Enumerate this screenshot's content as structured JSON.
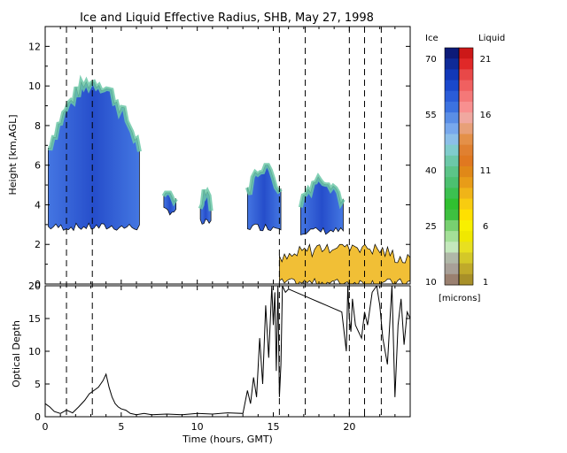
{
  "chart_data": [
    {
      "type": "heatmap",
      "title": "Ice and Liquid Effective Radius, SHB, May 27, 1998",
      "xlabel": "",
      "ylabel": "Height [km,AGL]",
      "xlim": [
        0,
        24
      ],
      "ylim": [
        0,
        13
      ],
      "y_ticks": [
        "0",
        "2",
        "4",
        "6",
        "8",
        "10",
        "12"
      ],
      "dashed_vertical_lines_hours": [
        1.4,
        3.1,
        15.4,
        17.1,
        20.0,
        21.0,
        22.1
      ],
      "colorbar": {
        "ice_label": "Ice",
        "liquid_label": "Liquid",
        "units": "[microns]",
        "ice_ticks": [
          "70",
          "55",
          "40",
          "25",
          "10"
        ],
        "liquid_ticks": [
          "21",
          "16",
          "11",
          "6",
          "1"
        ],
        "ice_colors": [
          "#0c1a78",
          "#0f2a98",
          "#1238b8",
          "#1a48cc",
          "#2a5cd8",
          "#3c72e0",
          "#5a8ee6",
          "#78a8ec",
          "#8cbfe8",
          "#80cccc",
          "#6cc8a8",
          "#5cc488",
          "#4cc070",
          "#3cc050",
          "#30c030",
          "#3ec040",
          "#78d070",
          "#a4e098",
          "#c4e8bc",
          "#b0b8a8",
          "#a8a098",
          "#9a8070"
        ],
        "liquid_colors": [
          "#cc1818",
          "#e02828",
          "#e84848",
          "#f06060",
          "#f47878",
          "#f89090",
          "#f0a8a0",
          "#e8a078",
          "#e49048",
          "#e08030",
          "#e07820",
          "#e08818",
          "#e89c18",
          "#f0b418",
          "#f8cc10",
          "#ffe000",
          "#f8f000",
          "#f0e800",
          "#e8e020",
          "#d4c828",
          "#c0aa2a",
          "#a89028"
        ]
      },
      "features": [
        {
          "name": "ice-cloud-morning",
          "t_start": 0.2,
          "t_end": 6.2,
          "base_km": 2.8,
          "top_km": 10.2,
          "phase": "ice"
        },
        {
          "name": "ice-cloud-patch-1",
          "t_start": 7.8,
          "t_end": 8.6,
          "base_km": 3.6,
          "top_km": 4.6,
          "phase": "ice"
        },
        {
          "name": "ice-cloud-patch-2",
          "t_start": 10.2,
          "t_end": 10.9,
          "base_km": 3.0,
          "top_km": 4.8,
          "phase": "ice"
        },
        {
          "name": "ice-cloud-afternoon",
          "t_start": 13.3,
          "t_end": 15.5,
          "base_km": 2.8,
          "top_km": 6.0,
          "phase": "ice"
        },
        {
          "name": "ice-cloud-evening",
          "t_start": 16.8,
          "t_end": 19.6,
          "base_km": 2.6,
          "top_km": 5.4,
          "phase": "ice"
        },
        {
          "name": "liquid-cloud-low",
          "t_start": 15.4,
          "t_end": 24,
          "base_km": 0,
          "top_km": 2.0,
          "phase": "liquid"
        }
      ]
    },
    {
      "type": "line",
      "title": "",
      "xlabel": "Time (hours, GMT)",
      "ylabel": "Optical Depth",
      "xlim": [
        0,
        24
      ],
      "ylim": [
        0,
        20
      ],
      "x_ticks": [
        "0",
        "5",
        "10",
        "15",
        "20"
      ],
      "y_ticks": [
        "0",
        "5",
        "10",
        "15",
        "20"
      ],
      "series": [
        {
          "x": [
            0,
            0.3,
            0.6,
            1.0,
            1.4,
            1.8,
            2.2,
            2.6,
            2.9,
            3.2,
            3.5,
            3.8,
            4.0,
            4.2,
            4.4,
            4.6,
            4.8,
            5.0,
            5.3,
            5.6,
            6.0,
            6.5,
            7.0,
            8.0,
            9.0,
            10.0,
            11.0,
            12.0,
            13.0,
            13.3,
            13.5,
            13.7,
            13.9,
            14.1,
            14.3,
            14.5,
            14.7,
            14.9,
            15.0,
            15.1,
            15.2,
            15.3,
            15.4,
            15.5,
            15.6,
            15.8,
            16.0,
            16.5,
            17.0,
            17.5,
            18.0,
            18.5,
            19.0,
            19.5,
            19.8,
            19.9,
            20.0,
            20.1,
            20.2,
            20.4,
            20.6,
            20.8,
            21.0,
            21.2,
            21.5,
            21.8,
            22.0,
            22.2,
            22.5,
            22.8,
            23.0,
            23.2,
            23.4,
            23.6,
            23.8,
            24.0
          ],
          "y": [
            2.0,
            1.5,
            0.8,
            0.5,
            1.0,
            0.6,
            1.5,
            2.5,
            3.5,
            4.0,
            4.5,
            5.5,
            6.5,
            4.5,
            3.0,
            2.0,
            1.5,
            1.2,
            1.0,
            0.5,
            0.3,
            0.5,
            0.3,
            0.4,
            0.3,
            0.5,
            0.4,
            0.6,
            0.5,
            4.0,
            2.0,
            6.0,
            3.0,
            12.0,
            5.0,
            17.0,
            9.0,
            20.0,
            14.0,
            19.0,
            7.0,
            20.0,
            3.0,
            8.0,
            20.0,
            19.0,
            19.5,
            19.0,
            18.5,
            18.0,
            17.5,
            17.0,
            16.5,
            16.0,
            10.0,
            20.0,
            15.0,
            13.0,
            18.0,
            14.0,
            13.0,
            12.0,
            16.0,
            14.0,
            19.0,
            20.0,
            17.0,
            12.0,
            8.0,
            20.0,
            3.0,
            14.0,
            18.0,
            11.0,
            16.0,
            15.0
          ]
        }
      ]
    }
  ]
}
